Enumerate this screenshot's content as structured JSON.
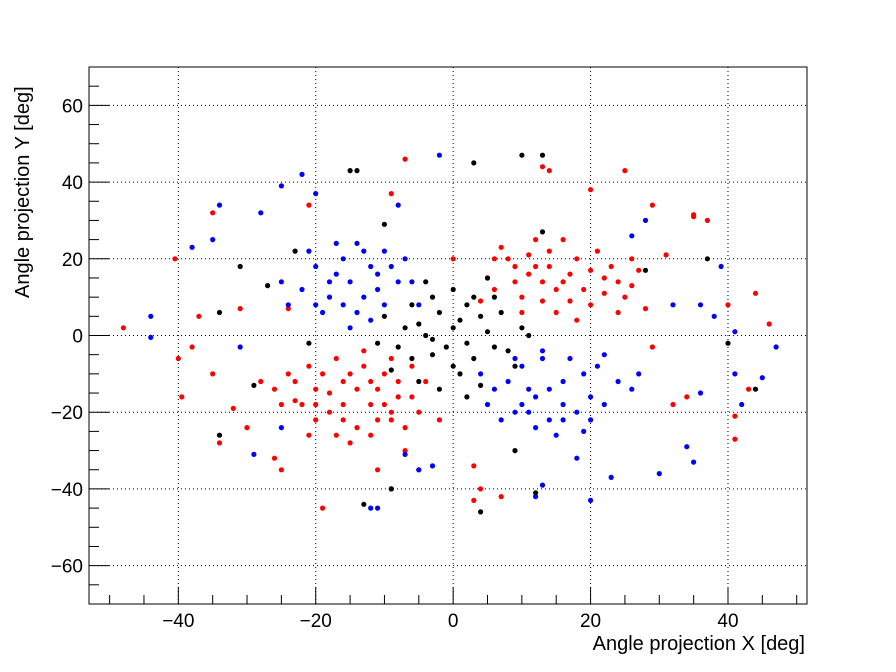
{
  "chart_data": {
    "type": "scatter",
    "xlabel": "Angle projection X [deg]",
    "ylabel": "Angle projection Y [deg]",
    "xlim": [
      -53,
      51.5
    ],
    "ylim": [
      -70,
      70
    ],
    "xticks": [
      -40,
      -20,
      0,
      20,
      40
    ],
    "yticks": [
      -60,
      -40,
      -20,
      0,
      20,
      40,
      60
    ],
    "xtick_labels": [
      "−40",
      "−20",
      "0",
      "20",
      "40"
    ],
    "ytick_labels": [
      "−60",
      "−40",
      "−20",
      "0",
      "20",
      "40",
      "60"
    ],
    "grid": true,
    "colors": {
      "red": "#ff0000",
      "blue": "#0000ff",
      "black": "#000000"
    },
    "series": [
      {
        "color": "#ff0000",
        "points": [
          [
            -48,
            2
          ],
          [
            -40,
            -6
          ],
          [
            -39.5,
            -16
          ],
          [
            -37,
            5
          ],
          [
            -35,
            32
          ],
          [
            -34,
            -28
          ],
          [
            -35,
            -10
          ],
          [
            -32,
            -19
          ],
          [
            -31,
            7
          ],
          [
            -30,
            -24
          ],
          [
            -28,
            -12
          ],
          [
            -26,
            -32
          ],
          [
            -25,
            -35
          ],
          [
            -24,
            7
          ],
          [
            -21,
            34
          ],
          [
            -21,
            -26
          ],
          [
            -19,
            -45
          ],
          [
            -9,
            37
          ],
          [
            -7,
            46
          ],
          [
            -11,
            -35
          ],
          [
            -9,
            -40
          ],
          [
            -7,
            -30
          ],
          [
            -5,
            -35
          ],
          [
            -2,
            -22
          ],
          [
            3,
            -34
          ],
          [
            3,
            -43
          ],
          [
            4,
            -40
          ],
          [
            7,
            -42
          ],
          [
            13,
            44
          ],
          [
            14,
            43
          ],
          [
            20,
            38
          ],
          [
            25,
            43
          ],
          [
            29,
            34
          ],
          [
            35,
            31
          ],
          [
            35,
            31.5
          ],
          [
            37,
            30
          ],
          [
            40,
            8
          ],
          [
            41,
            -21
          ],
          [
            41,
            -27
          ],
          [
            43,
            -14
          ],
          [
            44,
            11
          ],
          [
            46,
            3
          ],
          [
            31,
            21
          ],
          [
            29,
            -3
          ],
          [
            32,
            -18
          ],
          [
            34,
            -16
          ],
          [
            -40.5,
            20
          ],
          [
            -38,
            -3
          ],
          [
            -23,
            -17
          ],
          [
            0,
            20
          ],
          [
            9,
            14
          ],
          [
            12,
            18
          ],
          [
            15,
            12
          ],
          [
            18,
            20
          ],
          [
            22,
            15
          ],
          [
            25,
            10
          ],
          [
            14,
            22
          ],
          [
            10,
            6
          ],
          [
            6,
            12
          ],
          [
            8,
            20
          ],
          [
            11,
            16
          ],
          [
            13,
            9
          ],
          [
            17,
            16
          ],
          [
            20,
            8
          ],
          [
            23,
            18
          ],
          [
            26,
            13
          ],
          [
            19,
            12
          ],
          [
            16,
            25
          ],
          [
            12,
            25
          ],
          [
            7,
            23
          ],
          [
            5,
            15
          ],
          [
            24,
            6
          ],
          [
            27,
            17
          ],
          [
            21,
            22
          ],
          [
            28,
            7
          ],
          [
            10,
            10
          ],
          [
            15,
            6
          ],
          [
            18,
            4
          ],
          [
            13,
            14
          ],
          [
            11,
            21
          ],
          [
            14,
            18
          ],
          [
            20,
            17
          ],
          [
            22,
            11
          ],
          [
            17,
            9
          ],
          [
            9,
            18
          ],
          [
            6,
            20
          ],
          [
            4,
            9
          ],
          [
            26,
            20
          ],
          [
            24,
            14
          ],
          [
            16,
            14
          ],
          [
            -12,
            -18
          ],
          [
            -16,
            -12
          ],
          [
            -9,
            -22
          ],
          [
            -6,
            -16
          ],
          [
            -14,
            -24
          ],
          [
            -20,
            -14
          ],
          [
            -10,
            -10
          ],
          [
            -18,
            -20
          ],
          [
            -24,
            -10
          ],
          [
            -13,
            -8
          ],
          [
            -8,
            -12
          ],
          [
            -5,
            -20
          ],
          [
            -16,
            -18
          ],
          [
            -11,
            -14
          ],
          [
            -20,
            -22
          ],
          [
            -12,
            -26
          ],
          [
            -17,
            -6
          ],
          [
            -22,
            -18
          ],
          [
            -9,
            -6
          ],
          [
            -14,
            -14
          ],
          [
            -19,
            -10
          ],
          [
            -7,
            -24
          ],
          [
            -15,
            -28
          ],
          [
            -26,
            -14
          ],
          [
            -10,
            -18
          ],
          [
            -4,
            -12
          ],
          [
            -13,
            -4
          ],
          [
            -21,
            -8
          ],
          [
            -16,
            -22
          ],
          [
            -11,
            -22
          ],
          [
            -18,
            -15
          ],
          [
            -8,
            -16
          ],
          [
            -23,
            -12
          ],
          [
            -12,
            -12
          ],
          [
            -6,
            -8
          ],
          [
            -15,
            -10
          ],
          [
            -25,
            -18
          ],
          [
            -9,
            -20
          ],
          [
            -17,
            -26
          ],
          [
            -20,
            -18
          ]
        ]
      },
      {
        "color": "#0000ff",
        "points": [
          [
            -44,
            5
          ],
          [
            -44,
            -0.5
          ],
          [
            -38,
            23
          ],
          [
            -35,
            25
          ],
          [
            -34,
            34
          ],
          [
            -31,
            -3
          ],
          [
            -29,
            -31
          ],
          [
            -28,
            32
          ],
          [
            -25,
            -24
          ],
          [
            -25,
            39
          ],
          [
            -22,
            42
          ],
          [
            -20,
            37
          ],
          [
            -12,
            -45
          ],
          [
            -11,
            -45
          ],
          [
            -8,
            34
          ],
          [
            -7,
            -31
          ],
          [
            -5,
            -35
          ],
          [
            -2,
            47
          ],
          [
            -3,
            -34
          ],
          [
            12,
            -42
          ],
          [
            13,
            -39
          ],
          [
            18,
            -32
          ],
          [
            20,
            -43
          ],
          [
            23,
            -37
          ],
          [
            19,
            -25
          ],
          [
            27,
            -10
          ],
          [
            30,
            -36
          ],
          [
            32,
            8
          ],
          [
            34,
            -29
          ],
          [
            35,
            -33
          ],
          [
            36,
            8
          ],
          [
            38,
            5
          ],
          [
            39,
            18
          ],
          [
            41,
            1
          ],
          [
            41,
            -10
          ],
          [
            42,
            -18
          ],
          [
            45,
            -11
          ],
          [
            47,
            -3
          ],
          [
            36,
            -15
          ],
          [
            26,
            26
          ],
          [
            28,
            30
          ],
          [
            22,
            -5
          ],
          [
            -15,
            14
          ],
          [
            -12,
            18
          ],
          [
            -18,
            10
          ],
          [
            -10,
            8
          ],
          [
            -20,
            18
          ],
          [
            -14,
            6
          ],
          [
            -8,
            14
          ],
          [
            -16,
            20
          ],
          [
            -22,
            12
          ],
          [
            -13,
            22
          ],
          [
            -11,
            12
          ],
          [
            -17,
            16
          ],
          [
            -19,
            6
          ],
          [
            -7,
            20
          ],
          [
            -24,
            8
          ],
          [
            -15,
            2
          ],
          [
            -10,
            22
          ],
          [
            -12,
            4
          ],
          [
            -21,
            22
          ],
          [
            -9,
            18
          ],
          [
            -16,
            8
          ],
          [
            -14,
            24
          ],
          [
            -18,
            14
          ],
          [
            -5,
            8
          ],
          [
            -25,
            14
          ],
          [
            -13,
            10
          ],
          [
            -11,
            16
          ],
          [
            -20,
            8
          ],
          [
            -17,
            24
          ],
          [
            -6,
            14
          ],
          [
            12,
            -16
          ],
          [
            16,
            -12
          ],
          [
            9,
            -20
          ],
          [
            6,
            -14
          ],
          [
            14,
            -22
          ],
          [
            20,
            -16
          ],
          [
            10,
            -8
          ],
          [
            18,
            -20
          ],
          [
            24,
            -12
          ],
          [
            13,
            -6
          ],
          [
            8,
            -12
          ],
          [
            5,
            -18
          ],
          [
            16,
            -18
          ],
          [
            11,
            -14
          ],
          [
            20,
            -22
          ],
          [
            12,
            -24
          ],
          [
            17,
            -6
          ],
          [
            22,
            -18
          ],
          [
            9,
            -6
          ],
          [
            14,
            -14
          ],
          [
            19,
            -10
          ],
          [
            7,
            -22
          ],
          [
            15,
            -26
          ],
          [
            26,
            -14
          ],
          [
            10,
            -18
          ],
          [
            4,
            -10
          ],
          [
            13,
            -4
          ],
          [
            21,
            -8
          ],
          [
            16,
            -22
          ],
          [
            11,
            -20
          ]
        ]
      },
      {
        "color": "#000000",
        "points": [
          [
            -34,
            6
          ],
          [
            -34,
            -26
          ],
          [
            -29,
            -13
          ],
          [
            -23,
            22
          ],
          [
            -15,
            43
          ],
          [
            -14,
            43
          ],
          [
            -13,
            -44
          ],
          [
            -10,
            29
          ],
          [
            3,
            45
          ],
          [
            4,
            -46
          ],
          [
            9,
            -30
          ],
          [
            10,
            47
          ],
          [
            12,
            -41
          ],
          [
            13,
            27
          ],
          [
            13,
            47
          ],
          [
            28,
            17
          ],
          [
            37,
            20
          ],
          [
            40,
            -2
          ],
          [
            44,
            -14
          ],
          [
            -31,
            18
          ],
          [
            -27,
            13
          ],
          [
            -21,
            -2
          ],
          [
            -9,
            -40
          ],
          [
            -5,
            3
          ],
          [
            -3,
            -5
          ],
          [
            0,
            2
          ],
          [
            2,
            -2
          ],
          [
            4,
            5
          ],
          [
            -2,
            6
          ],
          [
            6,
            -3
          ],
          [
            -6,
            -6
          ],
          [
            1,
            -10
          ],
          [
            3,
            10
          ],
          [
            -4,
            0
          ],
          [
            5,
            1
          ],
          [
            -1,
            -3
          ],
          [
            7,
            6
          ],
          [
            -7,
            2
          ],
          [
            2,
            8
          ],
          [
            -3,
            10
          ],
          [
            8,
            -4
          ],
          [
            0,
            -8
          ],
          [
            4,
            -13
          ],
          [
            -5,
            -12
          ],
          [
            6,
            10
          ],
          [
            -8,
            -3
          ],
          [
            10,
            2
          ],
          [
            -10,
            5
          ],
          [
            1,
            4
          ],
          [
            -2,
            -14
          ],
          [
            3,
            -6
          ],
          [
            -6,
            8
          ],
          [
            9,
            -8
          ],
          [
            -9,
            -9
          ],
          [
            5,
            15
          ],
          [
            -4,
            14
          ],
          [
            11,
            0
          ],
          [
            -11,
            -2
          ],
          [
            0,
            12
          ],
          [
            2,
            -16
          ],
          [
            -3,
            -1
          ]
        ]
      }
    ]
  }
}
